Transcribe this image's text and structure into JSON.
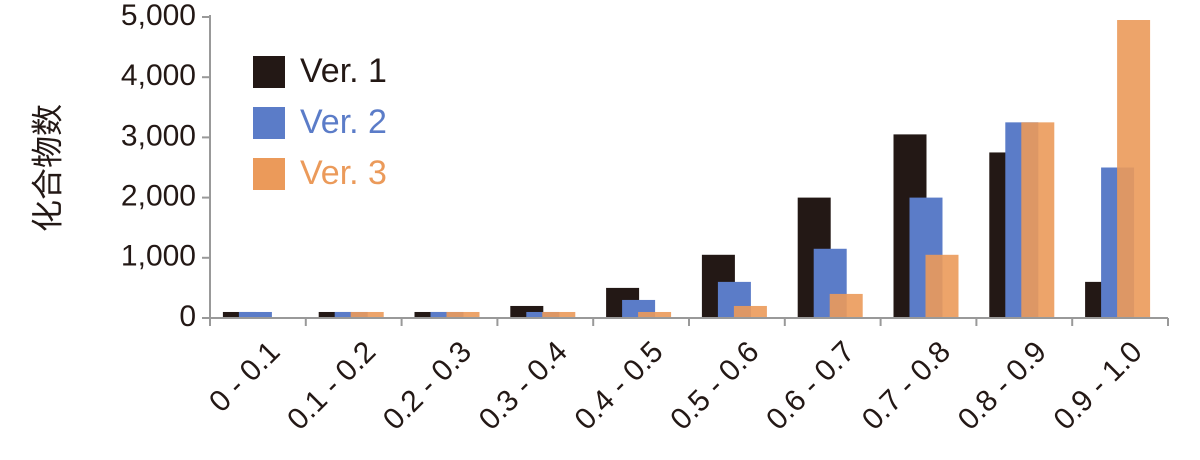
{
  "chart_data": {
    "type": "bar",
    "ylabel": "化合物数",
    "categories": [
      "0 - 0.1",
      "0.1 - 0.2",
      "0.2 - 0.3",
      "0.3 - 0.4",
      "0.4 - 0.5",
      "0.5 - 0.6",
      "0.6 - 0.7",
      "0.7 - 0.8",
      "0.8 - 0.9",
      "0.9 - 1.0"
    ],
    "series": [
      {
        "name": "Ver. 1",
        "color": "#231815",
        "values": [
          100,
          100,
          100,
          200,
          500,
          1050,
          2000,
          3050,
          2750,
          600
        ]
      },
      {
        "name": "Ver. 2",
        "color": "#5b7cc8",
        "values": [
          100,
          100,
          100,
          100,
          300,
          600,
          1150,
          2000,
          3250,
          2500
        ]
      },
      {
        "name": "Ver. 3",
        "color": "#eb9a5a",
        "values": [
          0,
          100,
          100,
          100,
          100,
          200,
          400,
          1050,
          3250,
          4950
        ]
      }
    ],
    "ylim": [
      0,
      5000
    ],
    "yticks": [
      0,
      {
        "value": 1000,
        "label": "1,000"
      },
      {
        "value": 2000,
        "label": "2,000"
      },
      {
        "value": 3000,
        "label": "3,000"
      },
      {
        "value": 4000,
        "label": "4,000"
      },
      {
        "value": 5000,
        "label": "5,000"
      }
    ],
    "legend": "upper-left"
  }
}
